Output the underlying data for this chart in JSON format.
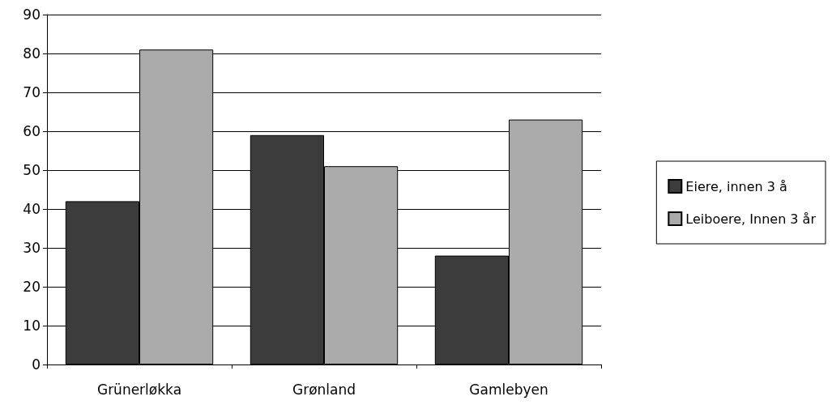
{
  "chart_data": {
    "type": "bar",
    "categories": [
      "Grünerløkka",
      "Grønland",
      "Gamlebyen"
    ],
    "series": [
      {
        "name": "Eiere, innen 3 å",
        "color": "#3c3c3c",
        "values": [
          42,
          59,
          28
        ]
      },
      {
        "name": "Leiboere, Innen 3 år",
        "color": "#aaaaaa",
        "values": [
          81,
          51,
          63
        ]
      }
    ],
    "ylim": [
      0,
      90
    ],
    "yticks": [
      0,
      10,
      20,
      30,
      40,
      50,
      60,
      70,
      80,
      90
    ],
    "grid": "y",
    "legend": "right"
  }
}
